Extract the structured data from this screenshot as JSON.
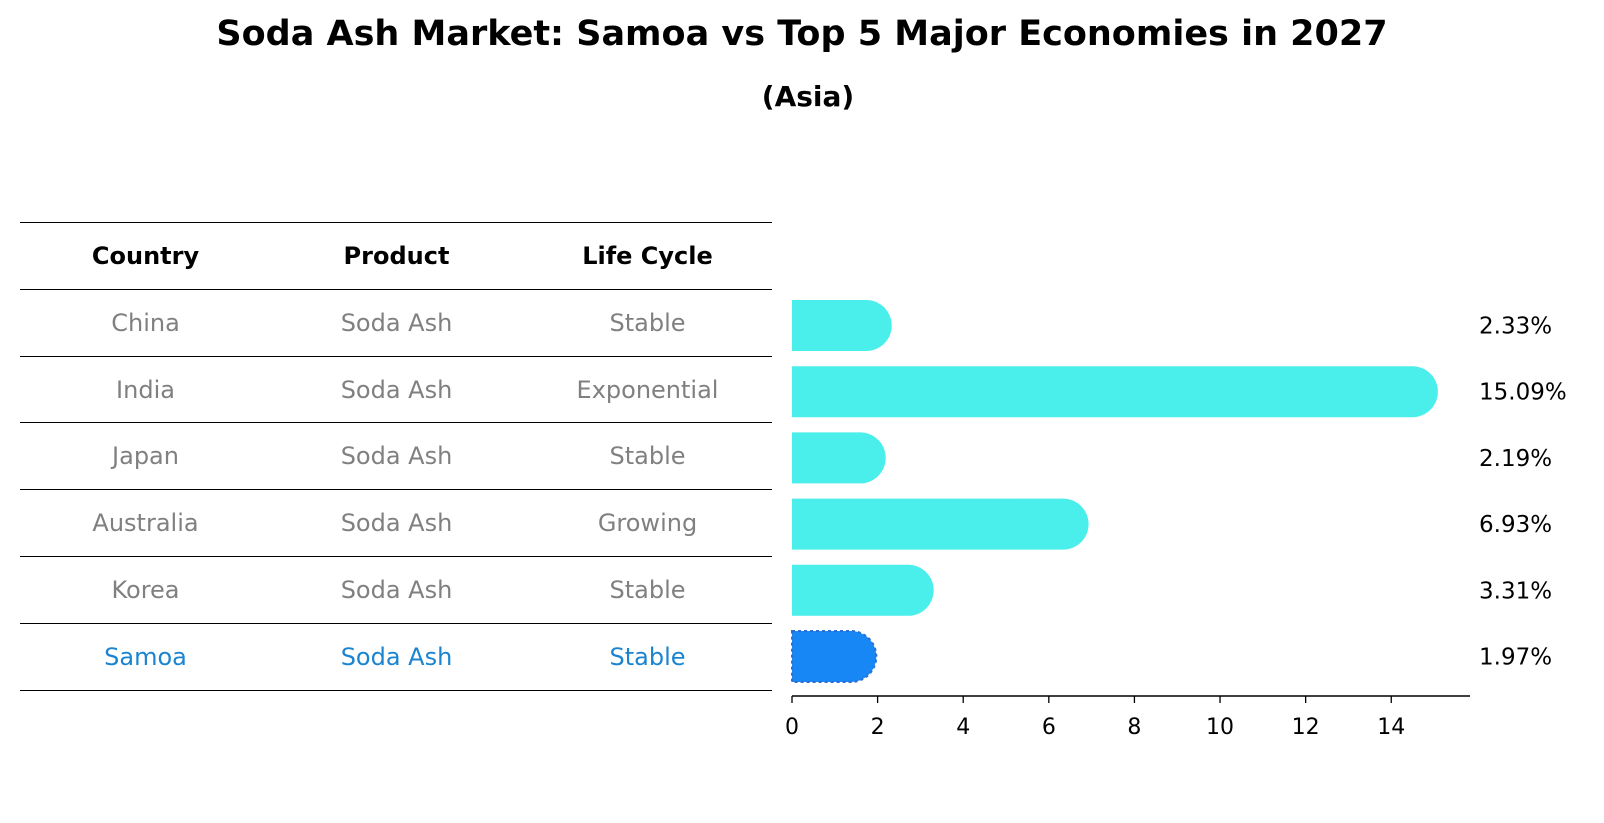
{
  "title": "Soda Ash Market: Samoa vs Top 5 Major Economies in 2027",
  "subtitle": "(Asia)",
  "table": {
    "headers": [
      "Country",
      "Product",
      "Life Cycle"
    ],
    "rows": [
      [
        "China",
        "Soda Ash",
        "Stable"
      ],
      [
        "India",
        "Soda Ash",
        "Exponential"
      ],
      [
        "Japan",
        "Soda Ash",
        "Stable"
      ],
      [
        "Australia",
        "Soda Ash",
        "Growing"
      ],
      [
        "Korea",
        "Soda Ash",
        "Stable"
      ],
      [
        "Samoa",
        "Soda Ash",
        "Stable"
      ]
    ],
    "highlight_row": 5,
    "colors": {
      "body": "#808080",
      "highlight": "#1a84d0"
    }
  },
  "chart_data": {
    "type": "bar",
    "orientation": "horizontal",
    "categories": [
      "China",
      "India",
      "Japan",
      "Australia",
      "Korea",
      "Samoa"
    ],
    "values": [
      2.33,
      15.09,
      2.19,
      6.93,
      3.31,
      1.97
    ],
    "value_labels": [
      "2.33%",
      "15.09%",
      "2.19%",
      "6.93%",
      "3.31%",
      "1.97%"
    ],
    "xlim": [
      0,
      15.84
    ],
    "xticks": [
      0,
      2,
      4,
      6,
      8,
      10,
      12,
      14
    ],
    "colors": {
      "default": "#4aeeea",
      "highlight": "#1787f5"
    },
    "highlight_index": 5
  }
}
